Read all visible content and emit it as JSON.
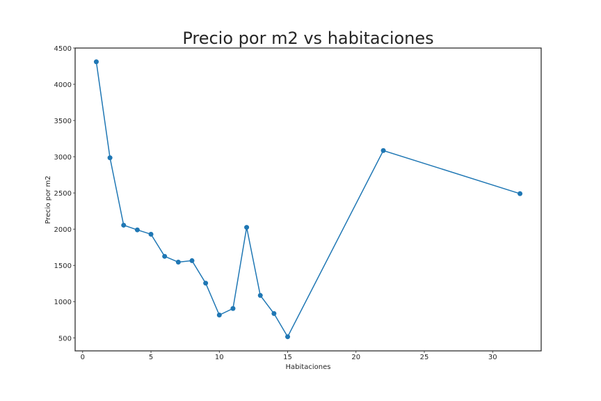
{
  "chart_data": {
    "type": "line",
    "title": "Precio por m2 vs habitaciones",
    "xlabel": "Habitaciones",
    "ylabel": "Precio por m2",
    "xlim": [
      -0.55,
      33.55
    ],
    "ylim": [
      320,
      4500
    ],
    "xticks": [
      0,
      5,
      10,
      15,
      20,
      25,
      30
    ],
    "yticks": [
      500,
      1000,
      1500,
      2000,
      2500,
      3000,
      3500,
      4000,
      4500
    ],
    "grid": false,
    "series": [
      {
        "color": "#1f77b4",
        "marker": "circle",
        "points": [
          {
            "x": 1,
            "y": 4310
          },
          {
            "x": 2,
            "y": 2985
          },
          {
            "x": 3,
            "y": 2055
          },
          {
            "x": 4,
            "y": 1990
          },
          {
            "x": 5,
            "y": 1930
          },
          {
            "x": 6,
            "y": 1625
          },
          {
            "x": 7,
            "y": 1545
          },
          {
            "x": 8,
            "y": 1565
          },
          {
            "x": 9,
            "y": 1255
          },
          {
            "x": 10,
            "y": 815
          },
          {
            "x": 11,
            "y": 905
          },
          {
            "x": 12,
            "y": 2025
          },
          {
            "x": 13,
            "y": 1085
          },
          {
            "x": 14,
            "y": 835
          },
          {
            "x": 15,
            "y": 515
          },
          {
            "x": 22,
            "y": 3085
          },
          {
            "x": 32,
            "y": 2490
          }
        ]
      }
    ]
  }
}
